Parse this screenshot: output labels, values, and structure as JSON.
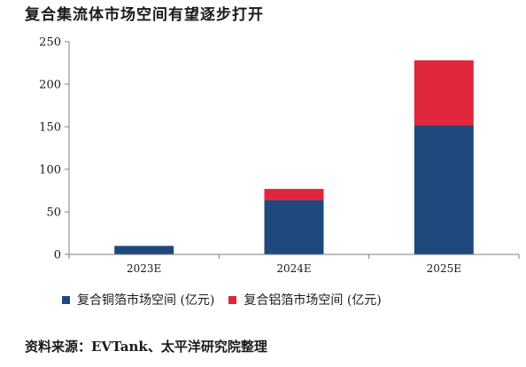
{
  "chart_data": {
    "type": "bar",
    "stacked": true,
    "title": "复合集流体市场空间有望逐步打开",
    "categories": [
      "2023E",
      "2024E",
      "2025E"
    ],
    "series": [
      {
        "name": "复合铜箔市场空间 (亿元)",
        "color": "#1f497d",
        "values": [
          10,
          64,
          152
        ]
      },
      {
        "name": "复合铝箔市场空间 (亿元)",
        "color": "#e0263a",
        "values": [
          0,
          13,
          76
        ]
      }
    ],
    "ylim": [
      0,
      250
    ],
    "yticks": [
      0,
      50,
      100,
      150,
      200,
      250
    ],
    "grid": false,
    "legend": "bottom",
    "xlabel": "",
    "ylabel": ""
  },
  "source": "资料来源：EVTank、太平洋研究院整理"
}
